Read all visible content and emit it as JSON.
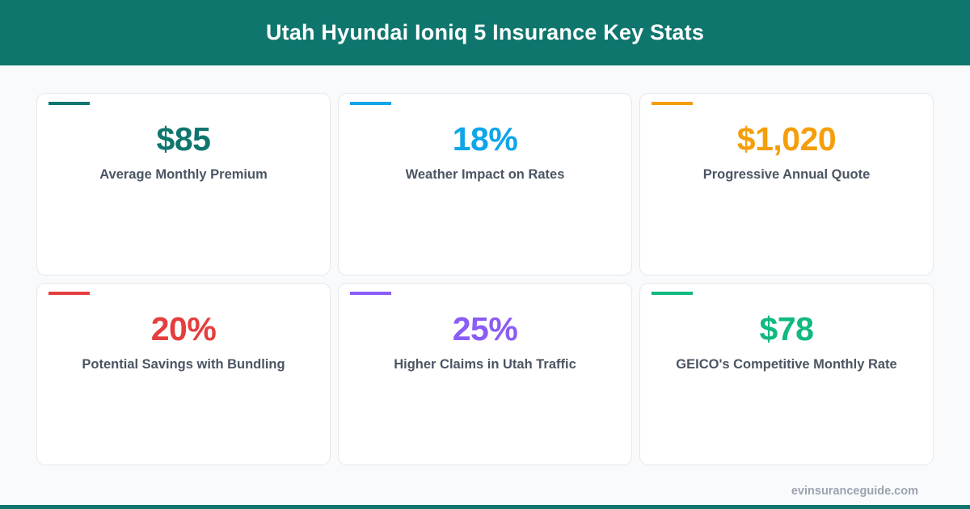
{
  "header": {
    "title": "Utah Hyundai Ioniq 5 Insurance Key Stats",
    "background": "#0f766e"
  },
  "stats": [
    {
      "value": "$85",
      "label": "Average Monthly Premium",
      "color": "#0f766e"
    },
    {
      "value": "18%",
      "label": "Weather Impact on Rates",
      "color": "#0ea5e9"
    },
    {
      "value": "$1,020",
      "label": "Progressive Annual Quote",
      "color": "#f59e0b"
    },
    {
      "value": "20%",
      "label": "Potential Savings with Bundling",
      "color": "#e53e3e"
    },
    {
      "value": "25%",
      "label": "Higher Claims in Utah Traffic",
      "color": "#8b5cf6"
    },
    {
      "value": "$78",
      "label": "GEICO's Competitive Monthly Rate",
      "color": "#10b981"
    }
  ],
  "footer": {
    "site": "evinsuranceguide.com"
  }
}
